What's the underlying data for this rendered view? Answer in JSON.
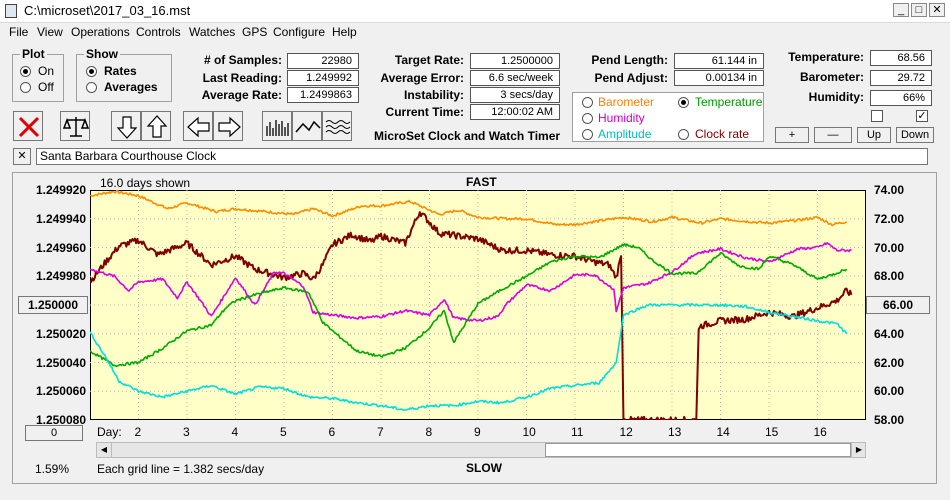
{
  "window": {
    "title": "C:\\microset\\2017_03_16.mst"
  },
  "menu": [
    "File",
    "View",
    "Operations",
    "Controls",
    "Watches",
    "GPS",
    "Configure",
    "Help"
  ],
  "plot_group": {
    "label": "Plot",
    "on": "On",
    "off": "Off",
    "selected": "On"
  },
  "show_group": {
    "label": "Show",
    "rates": "Rates",
    "averages": "Averages",
    "selected": "Rates"
  },
  "stats": {
    "samples_label": "# of Samples:",
    "samples": "22980",
    "last_label": "Last Reading:",
    "last": "1.249992",
    "avg_rate_label": "Average Rate:",
    "avg_rate": "1.2499863",
    "target_label": "Target Rate:",
    "target": "1.2500000",
    "avg_err_label": "Average Error:",
    "avg_err": "6.6 sec/week",
    "instab_label": "Instability:",
    "instab": "3 secs/day",
    "time_label": "Current Time:",
    "time": "12:00:02 AM",
    "pend_len_label": "Pend Length:",
    "pend_len": "61.144 in",
    "pend_adj_label": "Pend Adjust:",
    "pend_adj": "0.00134 in",
    "temp_label": "Temperature:",
    "temp": "68.56",
    "baro_label": "Barometer:",
    "baro": "29.72",
    "hum_label": "Humidity:",
    "hum": "66%"
  },
  "app_caption": "MicroSet Clock and Watch Timer",
  "right_axis_options": [
    {
      "label": "Barometer",
      "color": "#ff8000",
      "selected": false
    },
    {
      "label": "Temperature",
      "color": "#009900",
      "selected": true
    },
    {
      "label": "Humidity",
      "color": "#cc00cc",
      "selected": false
    },
    {
      "label": "Clock rate",
      "color": "#800000",
      "selected": false
    },
    {
      "label": "Amplitude",
      "color": "#00cccc",
      "selected": false
    }
  ],
  "scale_buttons": {
    "plus": "+",
    "minus": "—",
    "up": "Up",
    "down": "Down"
  },
  "checkbox_right": "✓",
  "watch_name": "Santa Barbara Courthouse Clock",
  "close_x": "✕",
  "chart_data": {
    "type": "line",
    "top_label": "FAST",
    "bottom_label": "SLOW",
    "days_shown": "16.0 days shown",
    "grid_note": "Each grid line = 1.382 secs/day",
    "left_ticks": [
      "1.249920",
      "1.249940",
      "1.249960",
      "1.249980",
      "1.250000",
      "1.250020",
      "1.250040",
      "1.250060",
      "1.250080"
    ],
    "right_ticks": [
      "74.00",
      "72.00",
      "70.00",
      "68.00",
      "66.00",
      "64.00",
      "62.00",
      "60.00",
      "58.00"
    ],
    "left_mid_button": "1.250000",
    "right_mid_button": "66.00",
    "bottom_left_button": "0",
    "percent": "1.59%",
    "day_label": "Day:",
    "days": [
      2,
      3,
      4,
      5,
      6,
      7,
      8,
      9,
      10,
      11,
      12,
      13,
      14,
      15,
      16
    ],
    "xlim": [
      1,
      17
    ],
    "series": [
      {
        "name": "Barometer",
        "color": "#ff8c00",
        "points": [
          [
            1,
            73.6
          ],
          [
            1.5,
            73.9
          ],
          [
            2,
            73.6
          ],
          [
            2.6,
            72.7
          ],
          [
            3,
            73.1
          ],
          [
            3.6,
            72.5
          ],
          [
            4,
            72.7
          ],
          [
            4.6,
            72.5
          ],
          [
            5.2,
            72.3
          ],
          [
            5.6,
            72.7
          ],
          [
            6,
            72.2
          ],
          [
            6.6,
            72.9
          ],
          [
            7,
            72.9
          ],
          [
            7.6,
            73.2
          ],
          [
            8.2,
            72.3
          ],
          [
            8.6,
            72.6
          ],
          [
            9,
            72.1
          ],
          [
            9.6,
            72.0
          ],
          [
            10,
            72.0
          ],
          [
            10.6,
            71.6
          ],
          [
            11,
            71.6
          ],
          [
            11.6,
            71.9
          ],
          [
            12,
            72.1
          ],
          [
            12.6,
            71.8
          ],
          [
            13,
            72.1
          ],
          [
            13.6,
            71.7
          ],
          [
            14,
            72.0
          ],
          [
            14.6,
            71.8
          ],
          [
            15,
            71.7
          ],
          [
            15.6,
            71.9
          ],
          [
            16,
            72.1
          ],
          [
            16.3,
            71.6
          ],
          [
            16.6,
            71.8
          ]
        ]
      },
      {
        "name": "Clock rate",
        "color": "#800000",
        "points": [
          [
            1,
            67.6
          ],
          [
            1.3,
            68.9
          ],
          [
            1.6,
            70.1
          ],
          [
            2,
            70.5
          ],
          [
            2.4,
            69.5
          ],
          [
            3,
            70.3
          ],
          [
            3.5,
            68.8
          ],
          [
            4,
            69.4
          ],
          [
            4.4,
            68.5
          ],
          [
            5,
            67.9
          ],
          [
            5.4,
            68.2
          ],
          [
            5.6,
            67.8
          ],
          [
            5.8,
            68.8
          ],
          [
            6,
            70.2
          ],
          [
            6.4,
            70.9
          ],
          [
            6.8,
            70.4
          ],
          [
            7,
            70.8
          ],
          [
            7.5,
            70.3
          ],
          [
            7.8,
            72.5
          ],
          [
            8.2,
            71.0
          ],
          [
            8.6,
            70.8
          ],
          [
            9,
            70.6
          ],
          [
            9.5,
            69.8
          ],
          [
            10,
            69.8
          ],
          [
            10.5,
            69.5
          ],
          [
            11,
            69.4
          ],
          [
            11.4,
            69.0
          ],
          [
            11.7,
            68.8
          ],
          [
            11.85,
            67.9
          ],
          [
            11.95,
            69.4
          ],
          [
            12.0,
            58.0
          ],
          [
            12.5,
            58.0
          ],
          [
            13.5,
            58.0
          ],
          [
            13.55,
            64.5
          ],
          [
            14,
            64.9
          ],
          [
            14.5,
            65.0
          ],
          [
            15,
            65.5
          ],
          [
            15.5,
            65.2
          ],
          [
            16,
            65.8
          ],
          [
            16.4,
            66.3
          ],
          [
            16.6,
            67.0
          ],
          [
            16.7,
            66.7
          ]
        ]
      },
      {
        "name": "Humidity",
        "color": "#dd00dd",
        "points": [
          [
            1,
            68.5
          ],
          [
            1.5,
            68.0
          ],
          [
            1.8,
            67.0
          ],
          [
            2,
            67.6
          ],
          [
            2.5,
            67.8
          ],
          [
            2.8,
            66.5
          ],
          [
            3,
            67.6
          ],
          [
            3.3,
            66.2
          ],
          [
            3.5,
            65.2
          ],
          [
            4,
            67.9
          ],
          [
            4.4,
            66.0
          ],
          [
            4.8,
            68.3
          ],
          [
            5,
            68.2
          ],
          [
            5.4,
            67.3
          ],
          [
            5.6,
            65.5
          ],
          [
            6,
            65.3
          ],
          [
            6.5,
            65.1
          ],
          [
            7,
            65.2
          ],
          [
            7.5,
            65.6
          ],
          [
            8,
            65.3
          ],
          [
            8.3,
            66.4
          ],
          [
            8.5,
            65.1
          ],
          [
            9,
            64.9
          ],
          [
            9.4,
            65.2
          ],
          [
            9.6,
            66.1
          ],
          [
            10,
            67.4
          ],
          [
            10.5,
            67.0
          ],
          [
            11,
            68.1
          ],
          [
            11.4,
            68.1
          ],
          [
            11.8,
            67.1
          ],
          [
            11.85,
            65.6
          ],
          [
            12,
            67.2
          ],
          [
            12.5,
            67.5
          ],
          [
            13,
            68.3
          ],
          [
            13.5,
            69.6
          ],
          [
            14,
            69.9
          ],
          [
            14.5,
            69.3
          ],
          [
            15,
            69.0
          ],
          [
            15.6,
            69.9
          ],
          [
            16,
            70.0
          ],
          [
            16.2,
            70.3
          ],
          [
            16.4,
            69.8
          ],
          [
            16.7,
            69.8
          ]
        ]
      },
      {
        "name": "Temperature",
        "color": "#00aa00",
        "points": [
          [
            1,
            62.8
          ],
          [
            1.5,
            61.8
          ],
          [
            2,
            62.0
          ],
          [
            2.5,
            63.0
          ],
          [
            3,
            64.2
          ],
          [
            3.5,
            64.6
          ],
          [
            3.8,
            65.8
          ],
          [
            4,
            66.3
          ],
          [
            4.5,
            66.8
          ],
          [
            5,
            67.2
          ],
          [
            5.5,
            66.9
          ],
          [
            5.8,
            64.8
          ],
          [
            6,
            64.2
          ],
          [
            6.5,
            62.8
          ],
          [
            7,
            62.4
          ],
          [
            7.5,
            63.0
          ],
          [
            8,
            64.4
          ],
          [
            8.3,
            65.6
          ],
          [
            8.5,
            63.4
          ],
          [
            9,
            66.1
          ],
          [
            9.5,
            67.1
          ],
          [
            10,
            68.0
          ],
          [
            10.5,
            69.0
          ],
          [
            11,
            69.4
          ],
          [
            11.5,
            69.3
          ],
          [
            12,
            70.2
          ],
          [
            12.3,
            70.0
          ],
          [
            12.6,
            69.1
          ],
          [
            13,
            68.2
          ],
          [
            13.5,
            68.2
          ],
          [
            14,
            69.6
          ],
          [
            14.4,
            68.7
          ],
          [
            14.8,
            68.5
          ],
          [
            15,
            69.4
          ],
          [
            15.5,
            68.8
          ],
          [
            16,
            67.8
          ],
          [
            16.3,
            68.1
          ],
          [
            16.6,
            68.5
          ]
        ]
      },
      {
        "name": "Amplitude",
        "color": "#00dddd",
        "points": [
          [
            1,
            64.1
          ],
          [
            1.3,
            62.5
          ],
          [
            1.6,
            60.7
          ],
          [
            2,
            60.0
          ],
          [
            2.5,
            59.6
          ],
          [
            3,
            60.0
          ],
          [
            3.5,
            60.4
          ],
          [
            4,
            59.8
          ],
          [
            4.5,
            60.3
          ],
          [
            5,
            60.2
          ],
          [
            5.5,
            59.6
          ],
          [
            6,
            59.5
          ],
          [
            6.5,
            59.2
          ],
          [
            7,
            59.0
          ],
          [
            7.5,
            58.7
          ],
          [
            8,
            59.0
          ],
          [
            8.5,
            59.0
          ],
          [
            9,
            59.3
          ],
          [
            9.5,
            59.2
          ],
          [
            10,
            59.6
          ],
          [
            10.5,
            60.2
          ],
          [
            11,
            60.4
          ],
          [
            11.5,
            60.6
          ],
          [
            11.85,
            62.0
          ],
          [
            12.0,
            65.3
          ],
          [
            12.5,
            66.0
          ],
          [
            13,
            66.0
          ],
          [
            13.5,
            66.0
          ],
          [
            14,
            66.0
          ],
          [
            14.5,
            65.9
          ],
          [
            15,
            65.5
          ],
          [
            15.5,
            65.2
          ],
          [
            16,
            64.9
          ],
          [
            16.4,
            64.7
          ],
          [
            16.6,
            64.0
          ]
        ]
      }
    ]
  }
}
